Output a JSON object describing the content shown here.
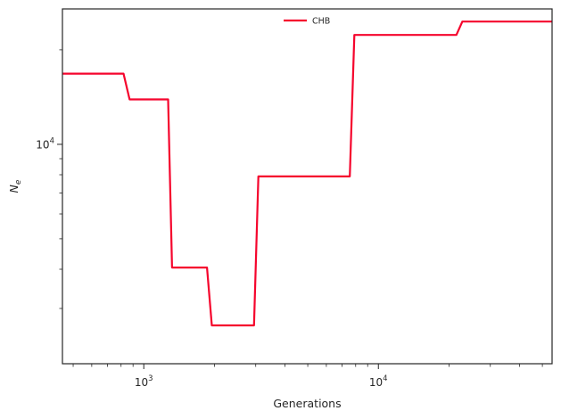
{
  "chart_data": {
    "type": "line",
    "title": "",
    "xlabel": "Generations",
    "ylabel_base": "N",
    "ylabel_sub": "e",
    "xscale": "log",
    "yscale": "log",
    "xlim": [
      450,
      55000
    ],
    "ylim": [
      2000,
      27000
    ],
    "x_major_ticks": [
      {
        "value": 1000,
        "base": "10",
        "exp": "3"
      },
      {
        "value": 10000,
        "base": "10",
        "exp": "4"
      }
    ],
    "y_major_ticks": [
      {
        "value": 10000,
        "base": "10",
        "exp": "4"
      }
    ],
    "grid": false,
    "legend_position": "top-center",
    "series": [
      {
        "name": "CHB",
        "color": "#f5052d",
        "x": [
          450,
          820,
          870,
          1270,
          1320,
          1860,
          1950,
          2950,
          3080,
          7550,
          7900,
          21500,
          22800,
          55000
        ],
        "y": [
          16800,
          16800,
          13900,
          13900,
          4050,
          4050,
          2650,
          2650,
          7900,
          7900,
          22300,
          22300,
          24600,
          24600
        ]
      }
    ]
  }
}
